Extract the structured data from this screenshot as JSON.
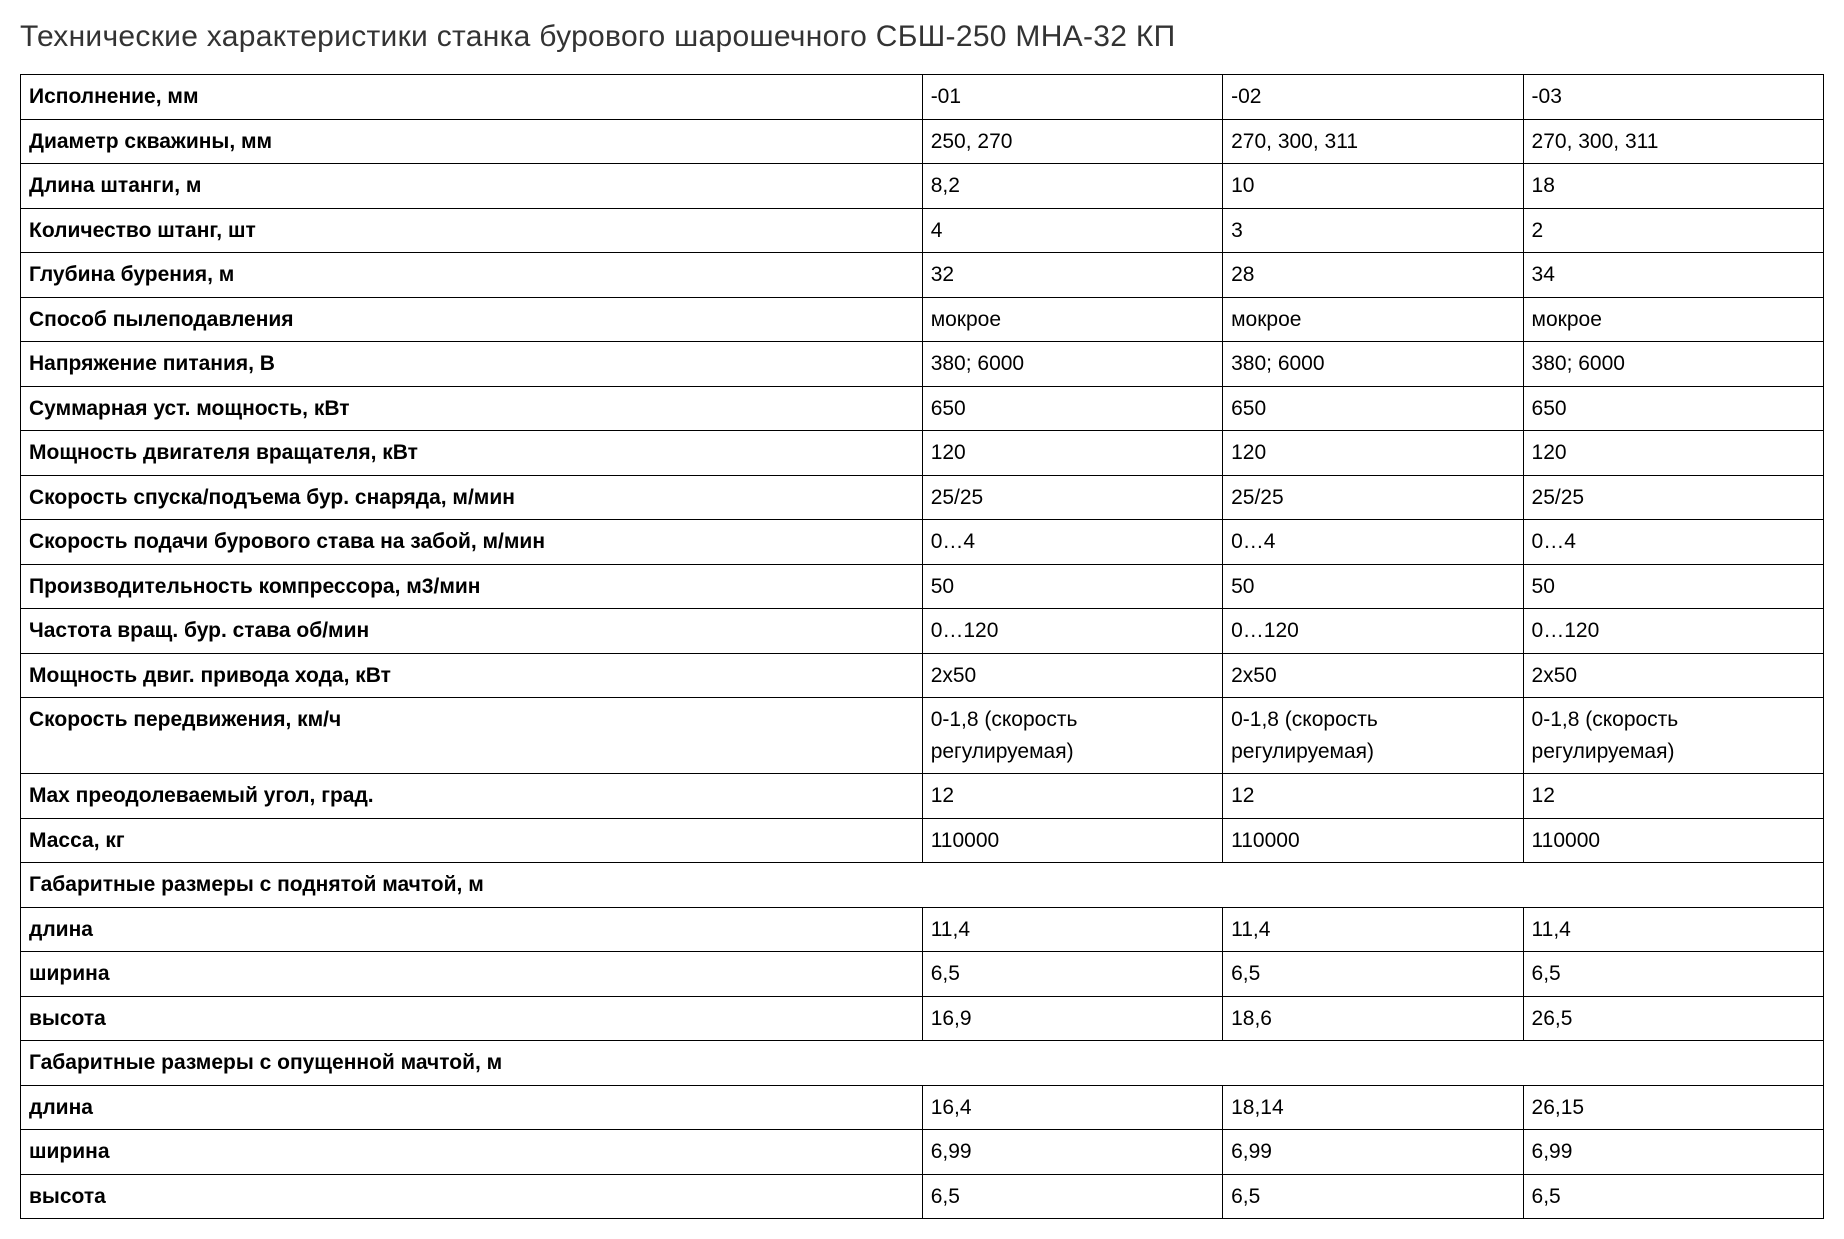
{
  "title": "Технические характеристики станка бурового шарошечного СБШ-250 МНА-32 КП",
  "table": {
    "header": {
      "label": "Исполнение, мм",
      "c1": "-01",
      "c2": "-02",
      "c3": "-03"
    },
    "rows": [
      {
        "label": "Диаметр скважины, мм",
        "c1": "250, 270",
        "c2": "270, 300, 311",
        "c3": "270, 300, 311"
      },
      {
        "label": "Длина штанги, м",
        "c1": "8,2",
        "c2": "10",
        "c3": "18"
      },
      {
        "label": "Количество штанг, шт",
        "c1": "4",
        "c2": "3",
        "c3": "2"
      },
      {
        "label": "Глубина бурения, м",
        "c1": "32",
        "c2": "28",
        "c3": "34"
      },
      {
        "label": "Способ пылеподавления",
        "c1": "мокрое",
        "c2": "мокрое",
        "c3": "мокрое"
      },
      {
        "label": "Напряжение питания, В",
        "c1": "380; 6000",
        "c2": "380; 6000",
        "c3": "380; 6000"
      },
      {
        "label": "Суммарная уст. мощность, кВт",
        "c1": "650",
        "c2": "650",
        "c3": "650"
      },
      {
        "label": "Мощность двигателя вращателя, кВт",
        "c1": "120",
        "c2": "120",
        "c3": "120"
      },
      {
        "label": "Скорость спуска/подъема бур. снаряда, м/мин",
        "c1": "25/25",
        "c2": "25/25",
        "c3": "25/25"
      },
      {
        "label": "Скорость подачи бурового става на забой, м/мин",
        "c1": "0…4",
        "c2": "0…4",
        "c3": "0…4"
      },
      {
        "label": "Производительность компрессора, м3/мин",
        "c1": "50",
        "c2": "50",
        "c3": "50"
      },
      {
        "label": "Частота вращ. бур. става об/мин",
        "c1": "0…120",
        "c2": "0…120",
        "c3": "0…120"
      },
      {
        "label": "Мощность двиг. привода хода, кВт",
        "c1": "2х50",
        "c2": "2х50",
        "c3": "2х50"
      },
      {
        "label": "Скорость передвижения, км/ч",
        "c1": "0-1,8 (скорость регулируемая)",
        "c2": "0-1,8 (скорость регулируемая)",
        "c3": "0-1,8 (скорость регулируемая)"
      },
      {
        "label": "Max преодолеваемый угол, град.",
        "c1": "12",
        "c2": "12",
        "c3": "12"
      },
      {
        "label": "Масса, кг",
        "c1": "110000",
        "c2": "110000",
        "c3": "110000"
      },
      {
        "section": "Габаритные размеры с поднятой мачтой, м"
      },
      {
        "label": "длина",
        "c1": "11,4",
        "c2": "11,4",
        "c3": "11,4"
      },
      {
        "label": "ширина",
        "c1": "6,5",
        "c2": "6,5",
        "c3": "6,5"
      },
      {
        "label": "высота",
        "c1": "16,9",
        "c2": "18,6",
        "c3": "26,5"
      },
      {
        "section": "Габаритные размеры с опущенной мачтой, м"
      },
      {
        "label": "длина",
        "c1": "16,4",
        "c2": "18,14",
        "c3": "26,15"
      },
      {
        "label": "ширина",
        "c1": "6,99",
        "c2": "6,99",
        "c3": "6,99"
      },
      {
        "label": "высота",
        "c1": "6,5",
        "c2": "6,5",
        "c3": "6,5"
      }
    ]
  },
  "style": {
    "background_color": "#ffffff",
    "text_color": "#000000",
    "title_color": "#333333",
    "border_color": "#000000",
    "title_fontsize": 30,
    "table_fontsize": 21,
    "font_family": "Arial, Helvetica, sans-serif"
  }
}
